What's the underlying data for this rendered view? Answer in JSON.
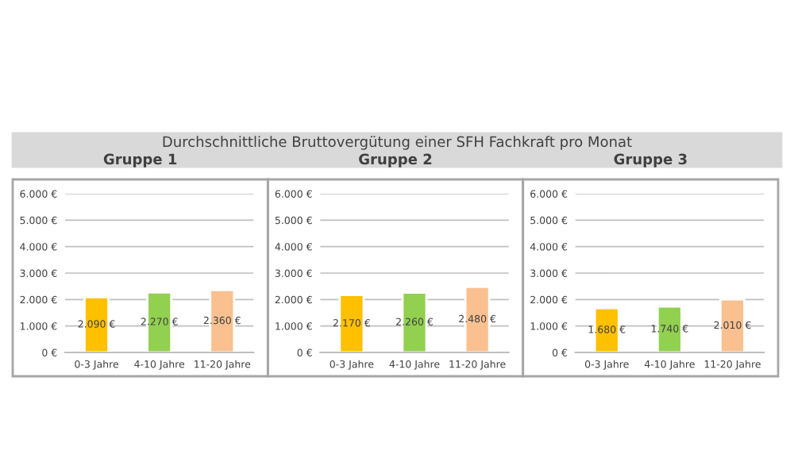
{
  "chart_data": [
    {
      "type": "bar",
      "title": "Durchschnittliche Bruttovergütung einer SFH Fachkraft pro Monat",
      "subtitle": "Gruppe 1",
      "categories": [
        "0-3 Jahre",
        "4-10 Jahre",
        "11-20 Jahre"
      ],
      "values": [
        2090,
        2270,
        2360
      ],
      "value_labels": [
        "2.090 €",
        "2.270 €",
        "2.360 €"
      ],
      "colors": [
        "#ffc000",
        "#92d050",
        "#fac090"
      ],
      "ylim": [
        0,
        6000
      ],
      "yticks": [
        {
          "value": 0,
          "label": "0 €"
        },
        {
          "value": 1000,
          "label": "1.000 €"
        },
        {
          "value": 2000,
          "label": "2.000 €"
        },
        {
          "value": 3000,
          "label": "3.000 €"
        },
        {
          "value": 4000,
          "label": "4.000 €"
        },
        {
          "value": 5000,
          "label": "5.000 €"
        },
        {
          "value": 6000,
          "label": "6.000 €"
        }
      ],
      "grid": "y"
    },
    {
      "type": "bar",
      "subtitle": "Gruppe 2",
      "categories": [
        "0-3 Jahre",
        "4-10 Jahre",
        "11-20 Jahre"
      ],
      "values": [
        2170,
        2260,
        2480
      ],
      "value_labels": [
        "2.170 €",
        "2.260 €",
        "2.480 €"
      ],
      "colors": [
        "#ffc000",
        "#92d050",
        "#fac090"
      ],
      "ylim": [
        0,
        6000
      ],
      "yticks": [
        {
          "value": 0,
          "label": "0 €"
        },
        {
          "value": 1000,
          "label": "1.000 €"
        },
        {
          "value": 2000,
          "label": "2.000 €"
        },
        {
          "value": 3000,
          "label": "3.000 €"
        },
        {
          "value": 4000,
          "label": "4.000 €"
        },
        {
          "value": 5000,
          "label": "5.000 €"
        },
        {
          "value": 6000,
          "label": "6.000 €"
        }
      ],
      "grid": "y"
    },
    {
      "type": "bar",
      "subtitle": "Gruppe 3",
      "categories": [
        "0-3 Jahre",
        "4-10 Jahre",
        "11-20 Jahre"
      ],
      "values": [
        1680,
        1740,
        2010
      ],
      "value_labels": [
        "1.680 €",
        "1.740 €",
        "2.010 €"
      ],
      "colors": [
        "#ffc000",
        "#92d050",
        "#fac090"
      ],
      "ylim": [
        0,
        6000
      ],
      "yticks": [
        {
          "value": 0,
          "label": "0 €"
        },
        {
          "value": 1000,
          "label": "1.000 €"
        },
        {
          "value": 2000,
          "label": "2.000 €"
        },
        {
          "value": 3000,
          "label": "3.000 €"
        },
        {
          "value": 4000,
          "label": "4.000 €"
        },
        {
          "value": 5000,
          "label": "5.000 €"
        },
        {
          "value": 6000,
          "label": "6.000 €"
        }
      ],
      "grid": "y"
    }
  ]
}
